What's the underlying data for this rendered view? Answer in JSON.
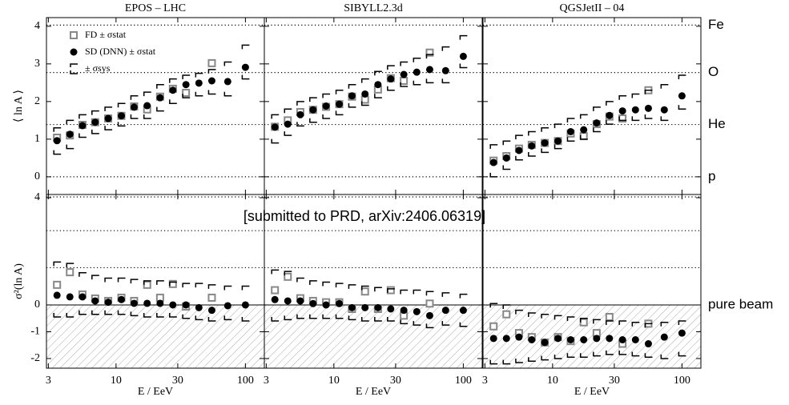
{
  "note": "[submitted to PRD, arXiv:2406.06319]",
  "chart_data": [
    {
      "type": "scatter",
      "title": "EPOS – LHC",
      "y_label": "⟨ ln A ⟩",
      "log_x": true,
      "legend": "upper left",
      "xlim": [
        2.9,
        140
      ],
      "ylim": [
        -0.47,
        4.23
      ],
      "xticks": [
        3,
        10,
        30,
        100
      ],
      "yticks": [
        0,
        1,
        2,
        3,
        4
      ],
      "hlines": [
        4.03,
        2.77,
        1.39,
        0
      ],
      "series": [
        {
          "name": "FD ± σstat",
          "marker": "square",
          "color": "#888888",
          "x": [
            3.5,
            4.4,
            5.5,
            6.9,
            8.7,
            11,
            13.8,
            17.4,
            21.9,
            27.5,
            34.7,
            55
          ],
          "values": [
            1.04,
            1.1,
            1.38,
            1.45,
            1.55,
            1.62,
            1.87,
            1.79,
            2.13,
            2.34,
            2.23,
            3.02
          ]
        },
        {
          "name": "SD (DNN) ± σstat",
          "marker": "circle",
          "color": "#000000",
          "x": [
            3.5,
            4.4,
            5.5,
            6.9,
            8.7,
            11,
            13.8,
            17.4,
            21.9,
            27.5,
            34.7,
            43.7,
            55,
            73,
            100
          ],
          "values": [
            0.96,
            1.13,
            1.36,
            1.45,
            1.55,
            1.62,
            1.85,
            1.89,
            2.1,
            2.3,
            2.45,
            2.49,
            2.55,
            2.53,
            2.91
          ]
        },
        {
          "name": "± σsys",
          "marker": "bracket",
          "color": "#000000",
          "x": [
            3.5,
            4.4,
            5.5,
            6.9,
            8.7,
            11,
            13.8,
            17.4,
            21.9,
            27.5,
            34.7,
            43.7,
            55,
            73,
            100
          ],
          "high": [
            1.3,
            1.5,
            1.65,
            1.75,
            1.85,
            1.95,
            2.15,
            2.25,
            2.45,
            2.6,
            2.7,
            2.75,
            2.85,
            3.05,
            3.5
          ],
          "low": [
            0.6,
            0.75,
            1.05,
            1.15,
            1.25,
            1.35,
            1.55,
            1.55,
            1.75,
            1.95,
            2.1,
            2.15,
            2.2,
            2.15,
            2.6
          ]
        }
      ]
    },
    {
      "type": "scatter",
      "title": "SIBYLL2.3d",
      "log_x": true,
      "xlim": [
        2.9,
        140
      ],
      "ylim": [
        -0.47,
        4.23
      ],
      "xticks": [
        3,
        10,
        30,
        100
      ],
      "yticks": [
        0,
        1,
        2,
        3,
        4
      ],
      "hlines": [
        4.03,
        2.77,
        1.39,
        0
      ],
      "series": [
        {
          "marker": "square",
          "color": "#888888",
          "x": [
            3.5,
            4.4,
            5.5,
            6.9,
            8.7,
            11,
            13.8,
            17.4,
            21.9,
            27.5,
            34.7,
            55
          ],
          "values": [
            1.33,
            1.5,
            1.72,
            1.78,
            1.86,
            1.93,
            2.13,
            2.05,
            2.32,
            2.62,
            2.55,
            3.3
          ]
        },
        {
          "marker": "circle",
          "color": "#000000",
          "x": [
            3.5,
            4.4,
            5.5,
            6.9,
            8.7,
            11,
            13.8,
            17.4,
            21.9,
            27.5,
            34.7,
            43.7,
            55,
            73,
            100
          ],
          "values": [
            1.32,
            1.4,
            1.65,
            1.78,
            1.88,
            1.93,
            2.15,
            2.2,
            2.45,
            2.6,
            2.72,
            2.78,
            2.85,
            2.82,
            3.2
          ]
        },
        {
          "marker": "bracket",
          "color": "#000000",
          "x": [
            3.5,
            4.4,
            5.5,
            6.9,
            8.7,
            11,
            13.8,
            17.4,
            21.9,
            27.5,
            34.7,
            43.7,
            55,
            73,
            100
          ],
          "high": [
            1.65,
            1.8,
            2.0,
            2.1,
            2.2,
            2.3,
            2.45,
            2.6,
            2.8,
            2.95,
            3.05,
            3.15,
            3.25,
            3.45,
            3.75
          ],
          "low": [
            0.9,
            1.1,
            1.35,
            1.45,
            1.55,
            1.65,
            1.85,
            1.9,
            2.1,
            2.3,
            2.4,
            2.45,
            2.5,
            2.5,
            2.9
          ]
        }
      ]
    },
    {
      "type": "scatter",
      "title": "QGSJetII – 04",
      "log_x": true,
      "xlim": [
        2.9,
        140
      ],
      "ylim": [
        -0.47,
        4.23
      ],
      "xticks": [
        3,
        10,
        30,
        100
      ],
      "yticks": [
        0,
        1,
        2,
        3,
        4
      ],
      "hlines": [
        {
          "value": 4.03,
          "label": "Fe"
        },
        {
          "value": 2.77,
          "label": "O"
        },
        {
          "value": 1.39,
          "label": "He"
        },
        {
          "value": 0,
          "label": "p"
        }
      ],
      "series": [
        {
          "marker": "square",
          "color": "#888888",
          "x": [
            3.5,
            4.4,
            5.5,
            6.9,
            8.7,
            11,
            13.8,
            17.4,
            21.9,
            27.5,
            34.7,
            55
          ],
          "values": [
            0.43,
            0.55,
            0.75,
            0.85,
            0.9,
            0.95,
            1.15,
            1.08,
            1.4,
            1.6,
            1.55,
            2.3
          ]
        },
        {
          "marker": "circle",
          "color": "#000000",
          "x": [
            3.5,
            4.4,
            5.5,
            6.9,
            8.7,
            11,
            13.8,
            17.4,
            21.9,
            27.5,
            34.7,
            43.7,
            55,
            73,
            100
          ],
          "values": [
            0.38,
            0.5,
            0.7,
            0.82,
            0.9,
            0.95,
            1.2,
            1.25,
            1.43,
            1.63,
            1.75,
            1.78,
            1.82,
            1.78,
            2.15
          ]
        },
        {
          "marker": "bracket",
          "color": "#000000",
          "x": [
            3.5,
            4.4,
            5.5,
            6.9,
            8.7,
            11,
            13.8,
            17.4,
            21.9,
            27.5,
            34.7,
            43.7,
            55,
            73,
            100
          ],
          "high": [
            0.85,
            0.95,
            1.1,
            1.2,
            1.3,
            1.4,
            1.55,
            1.65,
            1.85,
            2.0,
            2.15,
            2.2,
            2.3,
            2.45,
            2.7
          ],
          "low": [
            0.0,
            0.2,
            0.45,
            0.55,
            0.65,
            0.75,
            0.95,
            1.0,
            1.2,
            1.4,
            1.5,
            1.5,
            1.55,
            1.5,
            1.8
          ]
        }
      ]
    },
    {
      "type": "scatter",
      "y_label": "σ²(ln A)",
      "x_label": "E / EeV",
      "log_x": true,
      "hatch": true,
      "xlim": [
        2.9,
        140
      ],
      "ylim": [
        -2.36,
        4.12
      ],
      "xticks": [
        3,
        10,
        30,
        100
      ],
      "yticks": [
        -2,
        -1,
        0,
        4
      ],
      "hlines": [
        4.03,
        2.77,
        1.39
      ],
      "baseline": {
        "value": 0
      },
      "series": [
        {
          "marker": "square",
          "color": "#888888",
          "x": [
            3.5,
            4.4,
            5.5,
            6.9,
            8.7,
            11,
            13.8,
            17.4,
            21.9,
            27.5,
            34.7,
            55
          ],
          "values": [
            0.75,
            1.22,
            0.39,
            0.24,
            0.15,
            0.27,
            0.15,
            0.75,
            0.27,
            0.78,
            -0.06,
            0.27
          ]
        },
        {
          "marker": "circle",
          "color": "#000000",
          "x": [
            3.5,
            4.4,
            5.5,
            6.9,
            8.7,
            11,
            13.8,
            17.4,
            21.9,
            27.5,
            34.7,
            43.7,
            55,
            73,
            100
          ],
          "values": [
            0.36,
            0.3,
            0.3,
            0.15,
            0.1,
            0.2,
            0.06,
            0.06,
            0.06,
            0.0,
            0.0,
            -0.1,
            -0.2,
            -0.03,
            0.0
          ]
        },
        {
          "marker": "bracket",
          "color": "#000000",
          "x": [
            3.5,
            4.4,
            5.5,
            6.9,
            8.7,
            11,
            13.8,
            17.4,
            21.9,
            27.5,
            34.7,
            43.7,
            55,
            73,
            100
          ],
          "high": [
            1.6,
            1.55,
            1.2,
            1.1,
            1.0,
            1.0,
            0.95,
            0.9,
            0.9,
            0.85,
            0.8,
            0.8,
            0.75,
            0.7,
            0.7
          ],
          "low": [
            -0.45,
            -0.45,
            -0.35,
            -0.35,
            -0.35,
            -0.35,
            -0.4,
            -0.45,
            -0.45,
            -0.45,
            -0.5,
            -0.55,
            -0.6,
            -0.55,
            -0.6
          ]
        }
      ]
    },
    {
      "type": "scatter",
      "x_label": "E / EeV",
      "log_x": true,
      "hatch": true,
      "xlim": [
        2.9,
        140
      ],
      "ylim": [
        -2.36,
        4.12
      ],
      "xticks": [
        3,
        10,
        30,
        100
      ],
      "yticks": [
        -2,
        -1,
        0,
        4
      ],
      "hlines": [
        4.03,
        2.77,
        1.39
      ],
      "baseline": {
        "value": 0
      },
      "series": [
        {
          "marker": "square",
          "color": "#888888",
          "x": [
            3.5,
            4.4,
            5.5,
            6.9,
            8.7,
            11,
            13.8,
            17.4,
            21.9,
            27.5,
            34.7,
            55
          ],
          "values": [
            0.55,
            1.05,
            0.25,
            0.15,
            0.1,
            0.1,
            -0.15,
            0.5,
            -0.15,
            0.55,
            -0.4,
            0.05
          ]
        },
        {
          "marker": "circle",
          "color": "#000000",
          "x": [
            3.5,
            4.4,
            5.5,
            6.9,
            8.7,
            11,
            13.8,
            17.4,
            21.9,
            27.5,
            34.7,
            43.7,
            55,
            73,
            100
          ],
          "values": [
            0.2,
            0.15,
            0.15,
            0.05,
            0.0,
            0.05,
            -0.1,
            -0.1,
            -0.1,
            -0.15,
            -0.2,
            -0.25,
            -0.4,
            -0.2,
            -0.2
          ]
        },
        {
          "marker": "bracket",
          "color": "#000000",
          "x": [
            3.5,
            4.4,
            5.5,
            6.9,
            8.7,
            11,
            13.8,
            17.4,
            21.9,
            27.5,
            34.7,
            43.7,
            55,
            73,
            100
          ],
          "high": [
            1.3,
            1.25,
            1.0,
            0.9,
            0.85,
            0.8,
            0.75,
            0.7,
            0.65,
            0.6,
            0.55,
            0.55,
            0.5,
            0.45,
            0.4
          ],
          "low": [
            -0.6,
            -0.55,
            -0.5,
            -0.5,
            -0.5,
            -0.5,
            -0.55,
            -0.6,
            -0.6,
            -0.6,
            -0.7,
            -0.75,
            -0.85,
            -0.75,
            -0.8
          ]
        }
      ]
    },
    {
      "type": "scatter",
      "x_label": "E / EeV",
      "log_x": true,
      "hatch": true,
      "xlim": [
        2.9,
        140
      ],
      "ylim": [
        -2.36,
        4.12
      ],
      "xticks": [
        3,
        10,
        30,
        100
      ],
      "yticks": [
        -2,
        -1,
        0,
        4
      ],
      "hlines": [
        4.03,
        2.77,
        1.39
      ],
      "baseline": {
        "value": 0,
        "label": "pure beam"
      },
      "series": [
        {
          "marker": "square",
          "color": "#888888",
          "x": [
            3.5,
            4.4,
            5.5,
            6.9,
            8.7,
            11,
            13.8,
            17.4,
            21.9,
            27.5,
            34.7,
            55
          ],
          "values": [
            -0.8,
            -0.35,
            -1.05,
            -1.2,
            -1.4,
            -1.2,
            -1.35,
            -0.65,
            -1.05,
            -0.45,
            -1.45,
            -0.7
          ]
        },
        {
          "marker": "circle",
          "color": "#000000",
          "x": [
            3.5,
            4.4,
            5.5,
            6.9,
            8.7,
            11,
            13.8,
            17.4,
            21.9,
            27.5,
            34.7,
            43.7,
            55,
            73,
            100
          ],
          "values": [
            -1.25,
            -1.25,
            -1.2,
            -1.3,
            -1.4,
            -1.25,
            -1.3,
            -1.3,
            -1.25,
            -1.25,
            -1.3,
            -1.3,
            -1.45,
            -1.2,
            -1.05
          ]
        },
        {
          "marker": "bracket",
          "color": "#000000",
          "x": [
            3.5,
            4.4,
            5.5,
            6.9,
            8.7,
            11,
            13.8,
            17.4,
            21.9,
            27.5,
            34.7,
            43.7,
            55,
            73,
            100
          ],
          "high": [
            0.05,
            0.0,
            -0.2,
            -0.3,
            -0.35,
            -0.4,
            -0.45,
            -0.5,
            -0.55,
            -0.6,
            -0.6,
            -0.65,
            -0.7,
            -0.65,
            -0.6
          ],
          "low": [
            -2.2,
            -2.2,
            -2.15,
            -2.1,
            -2.05,
            -2.0,
            -1.95,
            -1.95,
            -1.9,
            -1.85,
            -1.85,
            -1.9,
            -1.95,
            -2.0,
            -1.9
          ]
        }
      ]
    }
  ]
}
